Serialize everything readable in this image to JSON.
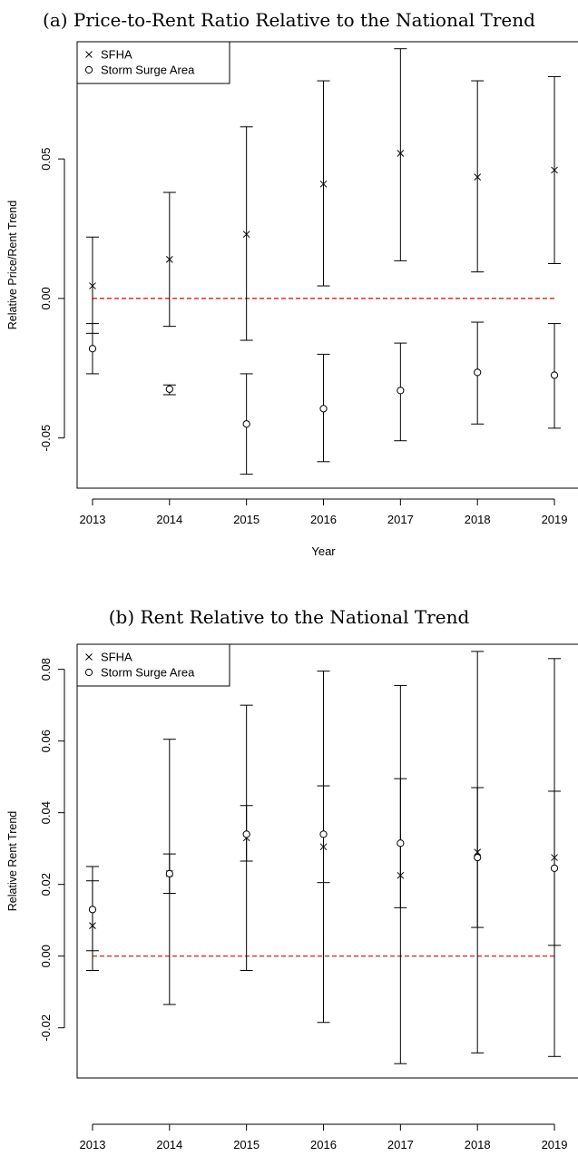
{
  "chart_data": [
    {
      "type": "scatter",
      "title": "(a) Price-to-Rent Ratio Relative to the National Trend",
      "xlabel": "Year",
      "ylabel": "Relative Price/Rent Trend",
      "x": [
        2013,
        2014,
        2015,
        2016,
        2017,
        2018,
        2019
      ],
      "xlim": [
        2012.8,
        2019.2
      ],
      "ylim": [
        -0.068,
        0.092
      ],
      "yticks": [
        "-0.05",
        "0.00",
        "0.05"
      ],
      "ytick_values": [
        -0.05,
        0.0,
        0.05
      ],
      "reference_line": {
        "y": 0,
        "color": "#dd0000",
        "style": "dashed"
      },
      "legend_position": "top-left",
      "grid": false,
      "series": [
        {
          "name": "SFHA",
          "marker": "x",
          "values": [
            0.0045,
            0.014,
            0.023,
            0.041,
            0.052,
            0.0435,
            0.046
          ],
          "ci_low": [
            -0.0125,
            -0.01,
            -0.015,
            0.0045,
            0.0135,
            0.0095,
            0.0125
          ],
          "ci_high": [
            0.022,
            0.038,
            0.0615,
            0.078,
            0.0895,
            0.078,
            0.0795
          ]
        },
        {
          "name": "Storm Surge Area",
          "marker": "o",
          "values": [
            -0.018,
            -0.0325,
            -0.045,
            -0.0395,
            -0.033,
            -0.0265,
            -0.0275
          ],
          "ci_low": [
            -0.027,
            -0.0345,
            -0.063,
            -0.0585,
            -0.051,
            -0.045,
            -0.0465
          ],
          "ci_high": [
            -0.009,
            -0.031,
            -0.027,
            -0.02,
            -0.016,
            -0.0085,
            -0.009
          ]
        }
      ]
    },
    {
      "type": "scatter",
      "title": "(b) Rent Relative to the National Trend",
      "xlabel": "Year",
      "ylabel": "Relative Rent Trend",
      "x": [
        2013,
        2014,
        2015,
        2016,
        2017,
        2018,
        2019
      ],
      "xlim": [
        2012.8,
        2019.2
      ],
      "ylim": [
        -0.034,
        0.087
      ],
      "yticks": [
        "-0.02",
        "0.00",
        "0.02",
        "0.04",
        "0.06",
        "0.08"
      ],
      "ytick_values": [
        -0.02,
        0.0,
        0.02,
        0.04,
        0.06,
        0.08
      ],
      "reference_line": {
        "y": 0,
        "color": "#dd0000",
        "style": "dashed"
      },
      "legend_position": "top-left",
      "grid": false,
      "series": [
        {
          "name": "SFHA",
          "marker": "x",
          "values": [
            0.0085,
            0.023,
            0.033,
            0.0305,
            0.0225,
            0.029,
            0.0275
          ],
          "ci_low": [
            -0.004,
            -0.0135,
            -0.004,
            -0.0185,
            -0.03,
            -0.027,
            -0.028
          ],
          "ci_high": [
            0.021,
            0.0605,
            0.07,
            0.0795,
            0.0755,
            0.085,
            0.083
          ]
        },
        {
          "name": "Storm Surge Area",
          "marker": "o",
          "values": [
            0.013,
            0.023,
            0.034,
            0.034,
            0.0315,
            0.0275,
            0.0245
          ],
          "ci_low": [
            0.0015,
            0.0175,
            0.0265,
            0.0205,
            0.0135,
            0.008,
            0.003
          ],
          "ci_high": [
            0.025,
            0.0285,
            0.042,
            0.0475,
            0.0495,
            0.047,
            0.046
          ]
        }
      ]
    }
  ]
}
